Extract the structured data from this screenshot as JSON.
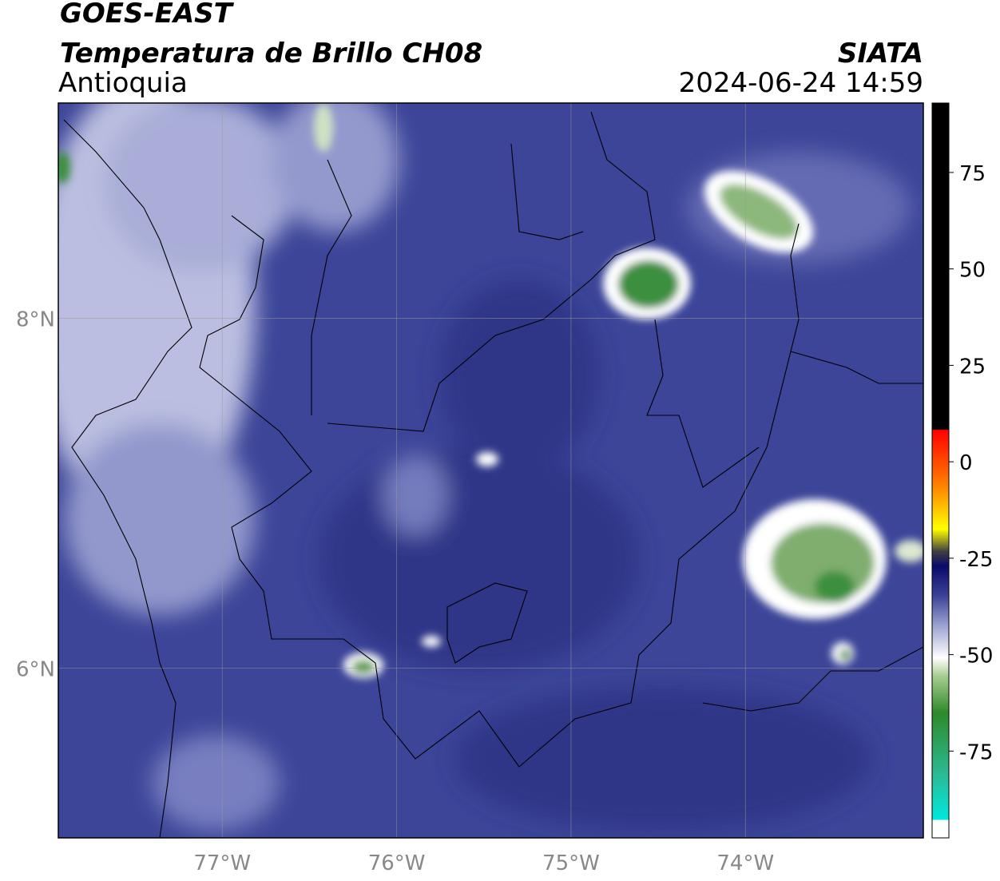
{
  "header": {
    "satellite": "GOES-EAST",
    "product": "Temperatura de Brillo CH08",
    "region": "Antioquia",
    "agency": "SIATA",
    "datetime": "2024-06-24 14:59"
  },
  "map": {
    "xlim": [
      -77.94,
      -72.98
    ],
    "ylim": [
      5.03,
      9.23
    ],
    "xticks": [
      {
        "value": -77,
        "label": "77°W"
      },
      {
        "value": -76,
        "label": "76°W"
      },
      {
        "value": -75,
        "label": "75°W"
      },
      {
        "value": -74,
        "label": "74°W"
      }
    ],
    "yticks": [
      {
        "value": 8,
        "label": "8°N"
      },
      {
        "value": 6,
        "label": "6°N"
      }
    ],
    "grid": true
  },
  "colorbar": {
    "lim": [
      -97.5,
      93
    ],
    "ticks": [
      75,
      50,
      25,
      0,
      -25,
      -50,
      -75
    ]
  }
}
